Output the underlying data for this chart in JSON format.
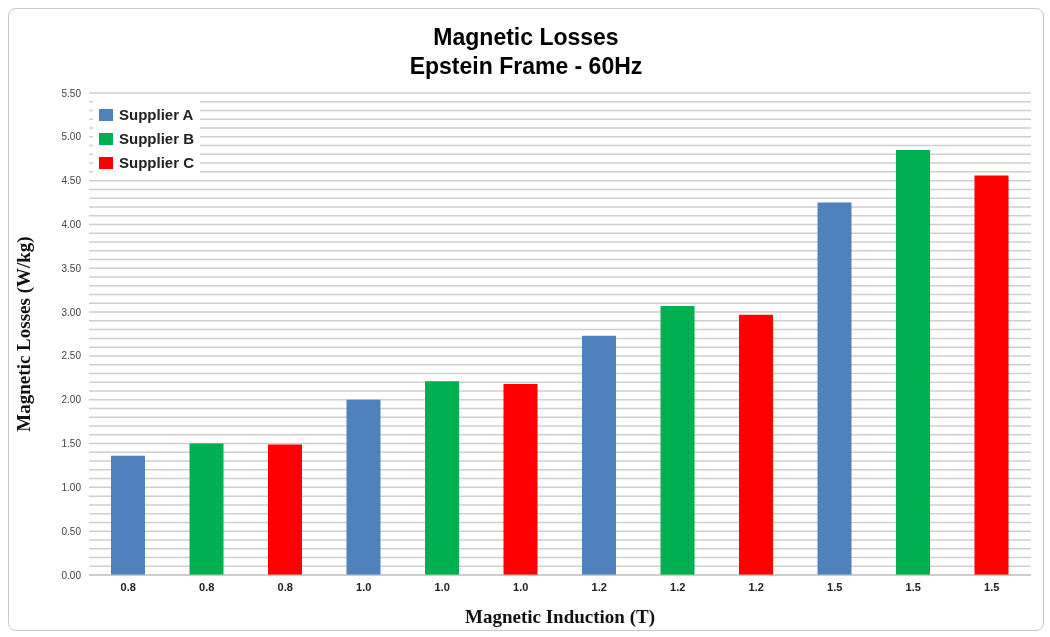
{
  "chart_data": {
    "type": "bar",
    "title": "Magnetic Losses",
    "subtitle": "Epstein Frame - 60Hz",
    "xlabel": "Magnetic Induction (T)",
    "ylabel": "Magnetic Losses (W/kg)",
    "categories": [
      "0.8",
      "0.8",
      "0.8",
      "1.0",
      "1.0",
      "1.0",
      "1.2",
      "1.2",
      "1.2",
      "1.5",
      "1.5",
      "1.5"
    ],
    "stacked": true,
    "series": [
      {
        "name": "Supplier A",
        "color": "#4f81bd",
        "values": [
          1.36,
          null,
          null,
          2.0,
          null,
          null,
          2.73,
          null,
          null,
          4.25,
          null,
          null
        ]
      },
      {
        "name": "Supplier B",
        "color": "#00b050",
        "values": [
          null,
          1.5,
          null,
          null,
          2.21,
          null,
          null,
          3.07,
          null,
          null,
          4.85,
          null
        ]
      },
      {
        "name": "Supplier C",
        "color": "#ff0000",
        "values": [
          null,
          null,
          1.49,
          null,
          null,
          2.18,
          null,
          null,
          2.97,
          null,
          null,
          4.56
        ]
      }
    ],
    "ylim": [
      0,
      5.5
    ],
    "yticks": [
      {
        "value": 0,
        "label": "0.00"
      },
      {
        "value": 0.1,
        "label": null
      },
      {
        "value": 0.2,
        "label": null
      },
      {
        "value": 0.3,
        "label": null
      },
      {
        "value": 0.4,
        "label": null
      },
      {
        "value": 0.5,
        "label": "0.50"
      },
      {
        "value": 0.6,
        "label": null
      },
      {
        "value": 0.7,
        "label": null
      },
      {
        "value": 0.8,
        "label": null
      },
      {
        "value": 0.9,
        "label": null
      },
      {
        "value": 1,
        "label": "1.00"
      },
      {
        "value": 1.1,
        "label": null
      },
      {
        "value": 1.2,
        "label": null
      },
      {
        "value": 1.3,
        "label": null
      },
      {
        "value": 1.4,
        "label": null
      },
      {
        "value": 1.5,
        "label": "1.50"
      },
      {
        "value": 1.6,
        "label": null
      },
      {
        "value": 1.7,
        "label": null
      },
      {
        "value": 1.8,
        "label": null
      },
      {
        "value": 1.9,
        "label": null
      },
      {
        "value": 2,
        "label": "2.00"
      },
      {
        "value": 2.1,
        "label": null
      },
      {
        "value": 2.2,
        "label": null
      },
      {
        "value": 2.3,
        "label": null
      },
      {
        "value": 2.4,
        "label": null
      },
      {
        "value": 2.5,
        "label": "2.50"
      },
      {
        "value": 2.6,
        "label": null
      },
      {
        "value": 2.7,
        "label": null
      },
      {
        "value": 2.8,
        "label": null
      },
      {
        "value": 2.9,
        "label": null
      },
      {
        "value": 3,
        "label": "3.00"
      },
      {
        "value": 3.1,
        "label": null
      },
      {
        "value": 3.2,
        "label": null
      },
      {
        "value": 3.3,
        "label": null
      },
      {
        "value": 3.4,
        "label": null
      },
      {
        "value": 3.5,
        "label": "3.50"
      },
      {
        "value": 3.6,
        "label": null
      },
      {
        "value": 3.7,
        "label": null
      },
      {
        "value": 3.8,
        "label": null
      },
      {
        "value": 3.9,
        "label": null
      },
      {
        "value": 4,
        "label": "4.00"
      },
      {
        "value": 4.1,
        "label": null
      },
      {
        "value": 4.2,
        "label": null
      },
      {
        "value": 4.3,
        "label": null
      },
      {
        "value": 4.4,
        "label": null
      },
      {
        "value": 4.5,
        "label": "4.50"
      },
      {
        "value": 4.6,
        "label": null
      },
      {
        "value": 4.7,
        "label": null
      },
      {
        "value": 4.8,
        "label": null
      },
      {
        "value": 4.9,
        "label": null
      },
      {
        "value": 5,
        "label": "5.00"
      },
      {
        "value": 5.1,
        "label": null
      },
      {
        "value": 5.2,
        "label": null
      },
      {
        "value": 5.3,
        "label": null
      },
      {
        "value": 5.4,
        "label": null
      },
      {
        "value": 5.5,
        "label": "5.50"
      }
    ],
    "grid": "y",
    "legend": "top left"
  }
}
